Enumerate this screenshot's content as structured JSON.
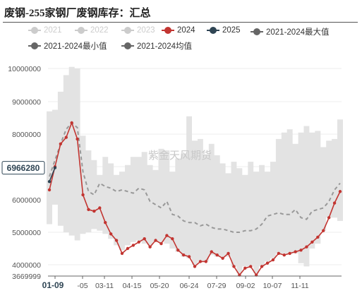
{
  "title": "废钢-255家钢厂废钢库存：汇总",
  "watermark": "紫金天风期货",
  "legend": [
    {
      "label": "2021",
      "color": "#cccccc",
      "inactive": true
    },
    {
      "label": "2022",
      "color": "#cccccc",
      "inactive": true
    },
    {
      "label": "2023",
      "color": "#cccccc",
      "inactive": true
    },
    {
      "label": "2024",
      "color": "#c23531",
      "inactive": false
    },
    {
      "label": "2025",
      "color": "#2f4554",
      "inactive": false
    },
    {
      "label": "2021-2024最大值",
      "color": "#666666",
      "inactive": false
    },
    {
      "label": "2021-2024最小值",
      "color": "#666666",
      "inactive": false
    },
    {
      "label": "2021-2024均值",
      "color": "#666666",
      "inactive": false
    }
  ],
  "chart_data": {
    "type": "line",
    "x_ticks": [
      "01-09",
      "-05",
      "03-11",
      "04-15",
      "05-20",
      "06-24",
      "07-29",
      "09-02",
      "10-07",
      "11-11"
    ],
    "y_ticks": [
      "10000000",
      "9000000",
      "8000000",
      "7000000",
      "6000000",
      "5000000",
      "4000000",
      "3669999"
    ],
    "ylim": [
      3669999,
      10000000
    ],
    "pointer_label": "6966280",
    "series": [
      {
        "name": "2024",
        "color": "#c23531",
        "values": [
          6300000,
          7000000,
          7700000,
          7900000,
          8350000,
          7850000,
          6150000,
          5700000,
          5650000,
          5750000,
          5300000,
          4950000,
          4750000,
          4350000,
          4500000,
          4600000,
          4700000,
          4800000,
          4550000,
          4750000,
          4650000,
          4900000,
          4800000,
          4450000,
          4300000,
          4250000,
          3950000,
          4100000,
          4100000,
          4400000,
          4300000,
          4200000,
          4350000,
          3950000,
          3700000,
          3900000,
          3950000,
          3700000,
          3950000,
          4050000,
          4150000,
          4350000,
          4300000,
          4350000,
          4400000,
          4450000,
          4550000,
          4700000,
          4850000,
          5050000,
          5450000,
          5900000,
          6250000
        ]
      },
      {
        "name": "2025",
        "color": "#2f4554",
        "values": [
          6550000,
          6966280
        ]
      },
      {
        "name": "2021-2024均值",
        "color": "#999999",
        "values": [
          6700000,
          7200000,
          7700000,
          8150000,
          8350000,
          8200000,
          6850000,
          6250000,
          6150000,
          6500000,
          6400000,
          6350000,
          6250000,
          6300000,
          6250000,
          6200000,
          6350000,
          6300000,
          5950000,
          5850000,
          5750000,
          5950000,
          5550000,
          5500000,
          5350000,
          5300000,
          5300000,
          5200000,
          5250000,
          5150000,
          5100000,
          5100000,
          5050000,
          5000000,
          5000000,
          5050000,
          5050000,
          5100000,
          5250000,
          5500000,
          5550000,
          5600000,
          5550000,
          5550000,
          5700000,
          5450000,
          5400000,
          5650000,
          5700000,
          5750000,
          5950000,
          6300000,
          6500000
        ]
      },
      {
        "name": "2021-2024最大值",
        "color": "#e3e3e3",
        "values": [
          8700000,
          8750000,
          9300000,
          9800000,
          10050000,
          10000000,
          7950000,
          7500000,
          7200000,
          6750000,
          7300000,
          7100000,
          6750000,
          6850000,
          7050000,
          7300000,
          7300000,
          7450000,
          7050000,
          6900000,
          7550000,
          7500000,
          6850000,
          7250000,
          7400000,
          8550000,
          7800000,
          7850000,
          7350000,
          7700000,
          7350000,
          7100000,
          6800000,
          7150000,
          6950000,
          6750000,
          7150000,
          6850000,
          7050000,
          6850000,
          7150000,
          7850000,
          8050000,
          8150000,
          7700000,
          8050000,
          8250000,
          8050000,
          8100000,
          7600000,
          7800000,
          7850000,
          8450000
        ]
      },
      {
        "name": "2021-2024最小值",
        "color": "#e3e3e3",
        "values": [
          5250000,
          5850000,
          5200000,
          5000000,
          4900000,
          4750000,
          4950000,
          5000000,
          5100000,
          5050000,
          4950000,
          4800000,
          4600000,
          4450000,
          4600000,
          4700000,
          4750000,
          4650000,
          4600000,
          4700000,
          4700000,
          4650000,
          4500000,
          4400000,
          4250000,
          4200000,
          4000000,
          4100000,
          4100000,
          4300000,
          4250000,
          4250000,
          4250000,
          3950000,
          3750000,
          3950000,
          3950000,
          3750000,
          3950000,
          4100000,
          4200000,
          4350000,
          4350000,
          4350000,
          4350000,
          4050000,
          3950000,
          4500000,
          4650000,
          5050000,
          5450000,
          5450000,
          5350000
        ]
      }
    ]
  }
}
